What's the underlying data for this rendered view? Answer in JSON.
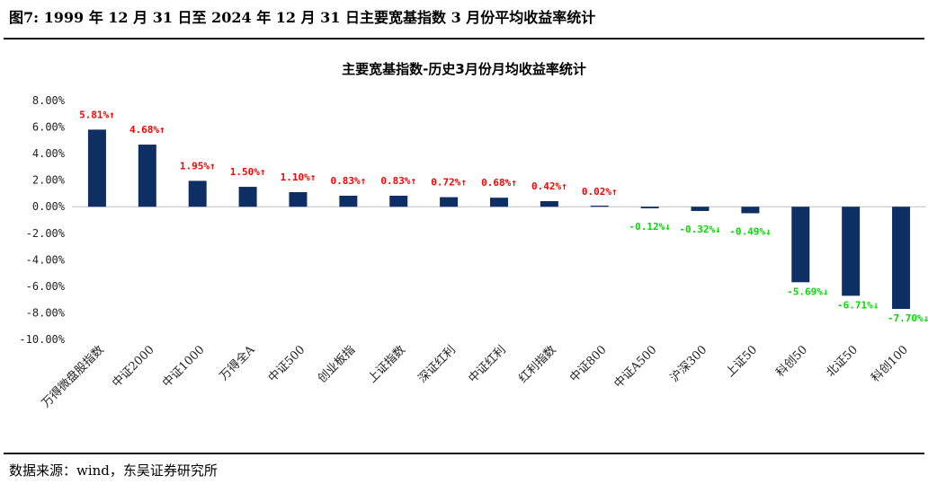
{
  "figure": {
    "title": "图7:  1999 年 12 月 31 日至 2024 年 12 月 31 日主要宽基指数 3 月份平均收益率统计",
    "source": "数据来源：wind，东吴证券研究所"
  },
  "colors": {
    "bar": "#0d2f63",
    "positive_label": "#ff0000",
    "negative_label": "#00dd00",
    "axis": "#bfbfbf"
  },
  "chart_data": {
    "type": "bar",
    "title": "主要宽基指数-历史3月份月均收益率统计",
    "xlabel": "",
    "ylabel": "",
    "ylim": [
      -0.1,
      0.08
    ],
    "yticks": [
      0.08,
      0.06,
      0.04,
      0.02,
      0.0,
      -0.02,
      -0.04,
      -0.06,
      -0.08,
      -0.1
    ],
    "ytick_labels": [
      "8.00%",
      "6.00%",
      "4.00%",
      "2.00%",
      "0.00%",
      "-2.00%",
      "-4.00%",
      "-6.00%",
      "-8.00%",
      "-10.00%"
    ],
    "grid": false,
    "legend": "none",
    "categories": [
      "万得微盘股指数",
      "中证2000",
      "中证1000",
      "万得全A",
      "中证500",
      "创业板指",
      "上证指数",
      "深证红利",
      "中证红利",
      "红利指数",
      "中证800",
      "中证A500",
      "沪深300",
      "上证50",
      "科创50",
      "北证50",
      "科创100"
    ],
    "values": [
      0.0581,
      0.0468,
      0.0195,
      0.015,
      0.011,
      0.0083,
      0.0083,
      0.0072,
      0.0068,
      0.0042,
      0.0002,
      -0.0012,
      -0.0032,
      -0.0049,
      -0.0569,
      -0.0671,
      -0.077
    ],
    "data_labels": [
      "5.81%↑",
      "4.68%↑",
      "1.95%↑",
      "1.50%↑",
      "1.10%↑",
      "0.83%↑",
      "0.83%↑",
      "0.72%↑",
      "0.68%↑",
      "0.42%↑",
      "0.02%↑",
      "-0.12%↓",
      "-0.32%↓",
      "-0.49%↓",
      "-5.69%↓",
      "-6.71%↓",
      "-7.70%↓"
    ]
  }
}
